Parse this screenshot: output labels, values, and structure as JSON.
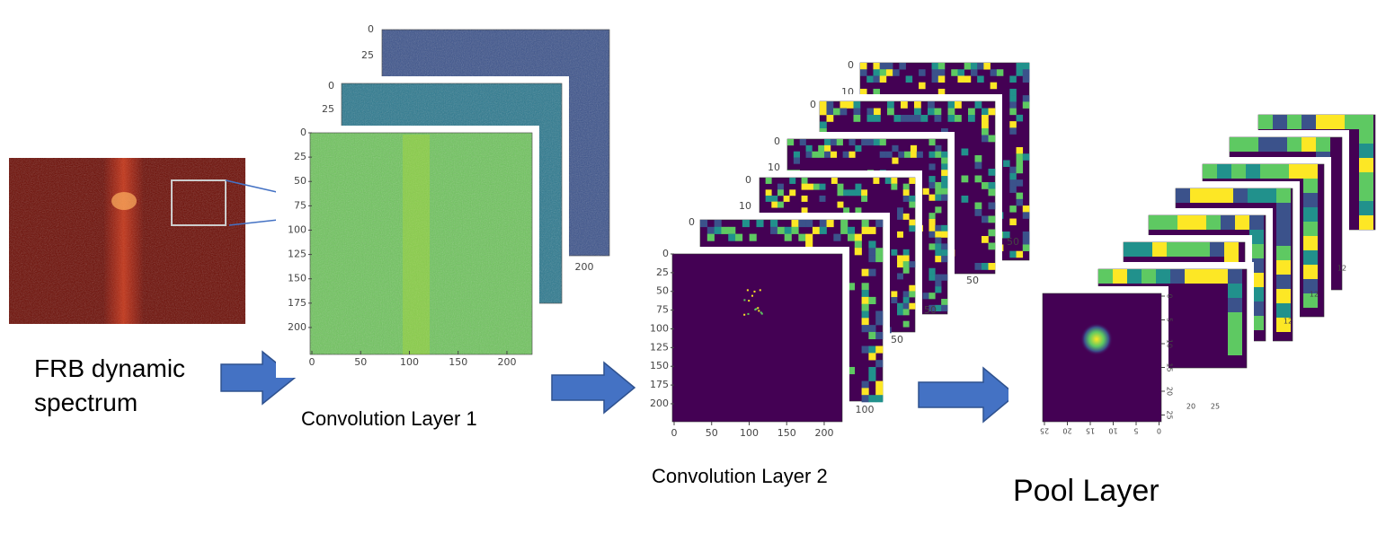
{
  "input": {
    "label": [
      "FRB  dynamic",
      "spectrum"
    ]
  },
  "conv1": {
    "label": "Convolution Layer 1",
    "front": {
      "yticks": [
        0,
        25,
        50,
        75,
        100,
        125,
        150,
        175,
        200
      ],
      "xticks": [
        0,
        50,
        100,
        150,
        200
      ]
    },
    "back": [
      {
        "yticks": [
          0,
          25
        ],
        "xticks": [
          200
        ]
      },
      {
        "yticks": [
          0,
          25
        ],
        "xticks": []
      }
    ]
  },
  "conv2": {
    "label": "Convolution Layer 2",
    "front": {
      "yticks": [
        0,
        25,
        50,
        75,
        100,
        125,
        150,
        175,
        200
      ],
      "xticks": [
        0,
        50,
        100,
        150,
        200
      ]
    },
    "back": [
      {
        "yticks": [
          0,
          10
        ],
        "xticks": [
          50
        ]
      },
      {
        "yticks": [
          0
        ],
        "xticks": [
          50
        ]
      },
      {
        "yticks": [
          0,
          10
        ],
        "xticks": [
          50
        ]
      },
      {
        "yticks": [
          0,
          10
        ],
        "xticks": [
          50
        ]
      },
      {
        "yticks": [
          0
        ],
        "xticks": [
          100
        ]
      }
    ]
  },
  "pool": {
    "label": "Pool Layer",
    "front": {
      "yticks": [
        0,
        5,
        10,
        15,
        20,
        25
      ],
      "xticks": [
        25,
        20,
        15,
        10,
        5,
        0
      ]
    },
    "back": [
      {
        "xticks": [
          12
        ]
      },
      {
        "xticks": [
          12
        ]
      },
      {
        "xticks": [
          12
        ]
      },
      {
        "xticks": [
          20,
          25
        ]
      }
    ]
  }
}
